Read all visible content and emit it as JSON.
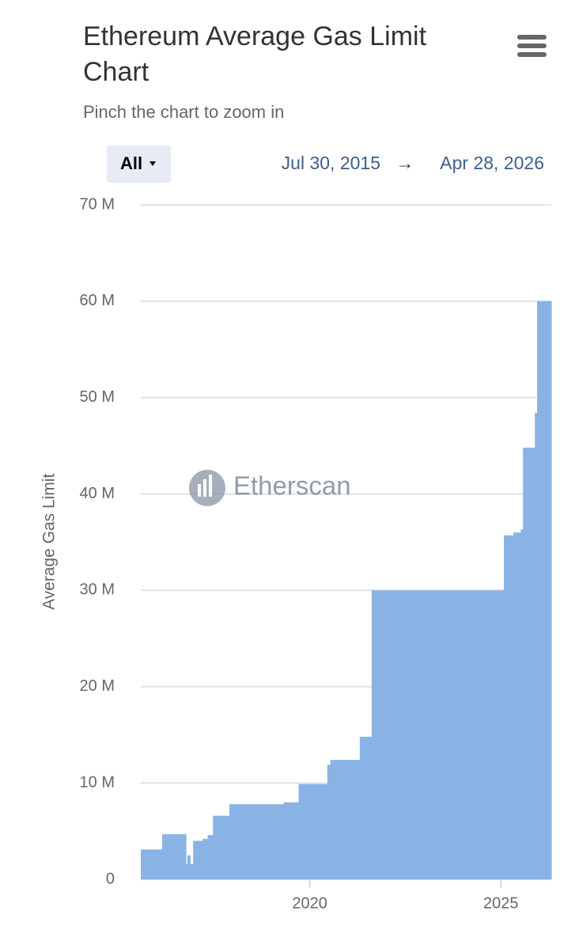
{
  "chart_data": {
    "type": "step-area",
    "title_lines": [
      "Ethereum Average Gas Limit",
      "Chart"
    ],
    "subtitle": "Pinch the chart to zoom in",
    "range_button": "All",
    "date_from": "Jul 30, 2015",
    "date_arrow": "→",
    "date_to": "Apr 28, 2026",
    "watermark": "Etherscan",
    "y_label": "Average Gas Limit",
    "color": "#89b3e5",
    "grid": true,
    "x": [
      2015.58,
      2016.14,
      2016.76,
      2016.8,
      2016.87,
      2016.95,
      2017.2,
      2017.33,
      2017.47,
      2017.9,
      2019.32,
      2019.71,
      2020.46,
      2020.54,
      2021.31,
      2021.62,
      2025.08,
      2025.33,
      2025.52,
      2025.58,
      2025.89,
      2025.95
    ],
    "values": [
      3.1,
      4.7,
      1.6,
      2.5,
      1.6,
      4.0,
      4.2,
      4.6,
      6.6,
      7.8,
      8.0,
      9.9,
      11.9,
      12.4,
      14.8,
      30,
      35.7,
      36,
      36.3,
      44.8,
      48.4,
      60
    ],
    "xlim": [
      2015.58,
      2026.32
    ],
    "xticks": [
      2020,
      2025
    ],
    "ylim": [
      0,
      70
    ],
    "yticks": [
      0,
      {
        "value": 10,
        "label": "10 M"
      },
      {
        "value": 20,
        "label": "20 M"
      },
      {
        "value": 30,
        "label": "30 M"
      },
      {
        "value": 40,
        "label": "40 M"
      },
      {
        "value": 50,
        "label": "50 M"
      },
      {
        "value": 60,
        "label": "60 M"
      },
      {
        "value": 70,
        "label": "70 M"
      }
    ]
  }
}
